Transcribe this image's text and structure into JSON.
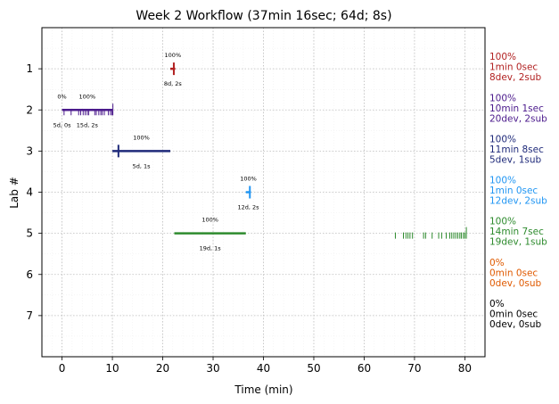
{
  "chart_data": {
    "type": "timeline",
    "title": "Week 2 Workflow (37min 16sec; 64d; 8s)",
    "xlabel": "Time (min)",
    "ylabel": "Lab #",
    "xlim": [
      -4,
      84
    ],
    "ylim": [
      8,
      0
    ],
    "x_ticks": [
      0,
      10,
      20,
      30,
      40,
      50,
      60,
      70,
      80
    ],
    "y_ticks": [
      1,
      2,
      3,
      4,
      5,
      6,
      7
    ],
    "grid": true,
    "labs": [
      {
        "lab": 1,
        "color": "#b22222",
        "bars": [
          {
            "start": 21.5,
            "end": 22.5,
            "pct": "100%",
            "sub": "8d, 2s"
          }
        ],
        "events": [
          22.2
        ],
        "summary": [
          "100%",
          "1min 0sec",
          "8dev, 2sub"
        ]
      },
      {
        "lab": 2,
        "color": "#4b1a8c",
        "bars": [
          {
            "start": 0,
            "end": 0,
            "pct": "0%",
            "sub": "5d, 0s"
          },
          {
            "start": 0,
            "end": 10,
            "pct": "100%",
            "sub": "15d, 2s"
          }
        ],
        "events": [
          0.4,
          1.8,
          3.3,
          3.7,
          4.2,
          4.6,
          5.0,
          5.3,
          6.5,
          6.8,
          7.3,
          7.7,
          8.0,
          8.4,
          9.2,
          9.6,
          9.9,
          10.1
        ],
        "summary": [
          "100%",
          "10min 1sec",
          "20dev, 2sub"
        ]
      },
      {
        "lab": 3,
        "color": "#1f2a7a",
        "bars": [
          {
            "start": 10,
            "end": 21.5,
            "pct": "100%",
            "sub": "5d, 1s"
          }
        ],
        "events": [
          11.2
        ],
        "summary": [
          "100%",
          "11min 8sec",
          "5dev, 1sub"
        ]
      },
      {
        "lab": 4,
        "color": "#2196f3",
        "bars": [
          {
            "start": 36.5,
            "end": 37.5,
            "pct": "100%",
            "sub": "12d, 2s"
          }
        ],
        "events": [
          37.3
        ],
        "summary": [
          "100%",
          "1min 0sec",
          "12dev, 2sub"
        ]
      },
      {
        "lab": 5,
        "color": "#2e8b2e",
        "bars": [
          {
            "start": 22.3,
            "end": 36.5,
            "pct": "100%",
            "sub": "19d, 1s"
          }
        ],
        "events": [
          66.2,
          67.8,
          68.3,
          68.7,
          69.1,
          69.6,
          71.8,
          72.2,
          73.5,
          74.8,
          75.4,
          76.3,
          77.0,
          77.4,
          77.8,
          78.2,
          78.6,
          79.0,
          79.3,
          79.7,
          80.0,
          80.3
        ],
        "summary": [
          "100%",
          "14min 7sec",
          "19dev, 1sub"
        ]
      },
      {
        "lab": 6,
        "color": "#e05a00",
        "bars": [],
        "events": [],
        "summary": [
          "0%",
          "0min 0sec",
          "0dev, 0sub"
        ]
      },
      {
        "lab": 7,
        "color": "#000000",
        "bars": [],
        "events": [],
        "summary": [
          "0%",
          "0min 0sec",
          "0dev, 0sub"
        ]
      }
    ]
  }
}
